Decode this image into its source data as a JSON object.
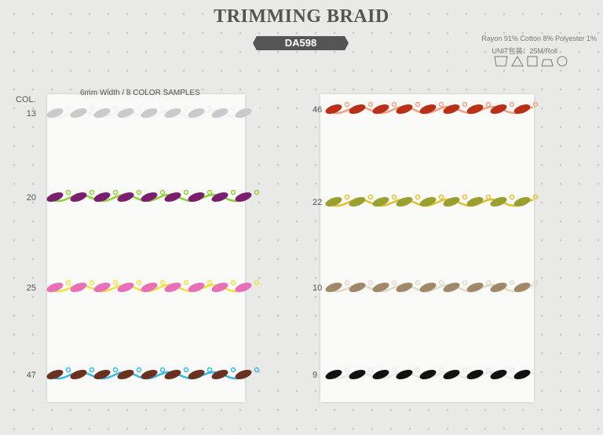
{
  "header": {
    "title": "TRIMMING BRAID",
    "code": "DA598",
    "composition": "Rayon 91% Cotton 8% Polyester 1%",
    "unit": "UNIT包装：25M/Roll"
  },
  "subtitle": "6mm Width / 8 COLOR SAMPLES",
  "column_label": "COL.",
  "samples": [
    {
      "col": "13"
    },
    {
      "col": "20"
    },
    {
      "col": "25"
    },
    {
      "col": "47"
    },
    {
      "col": "46"
    },
    {
      "col": "22"
    },
    {
      "col": "10"
    },
    {
      "col": "9"
    }
  ]
}
